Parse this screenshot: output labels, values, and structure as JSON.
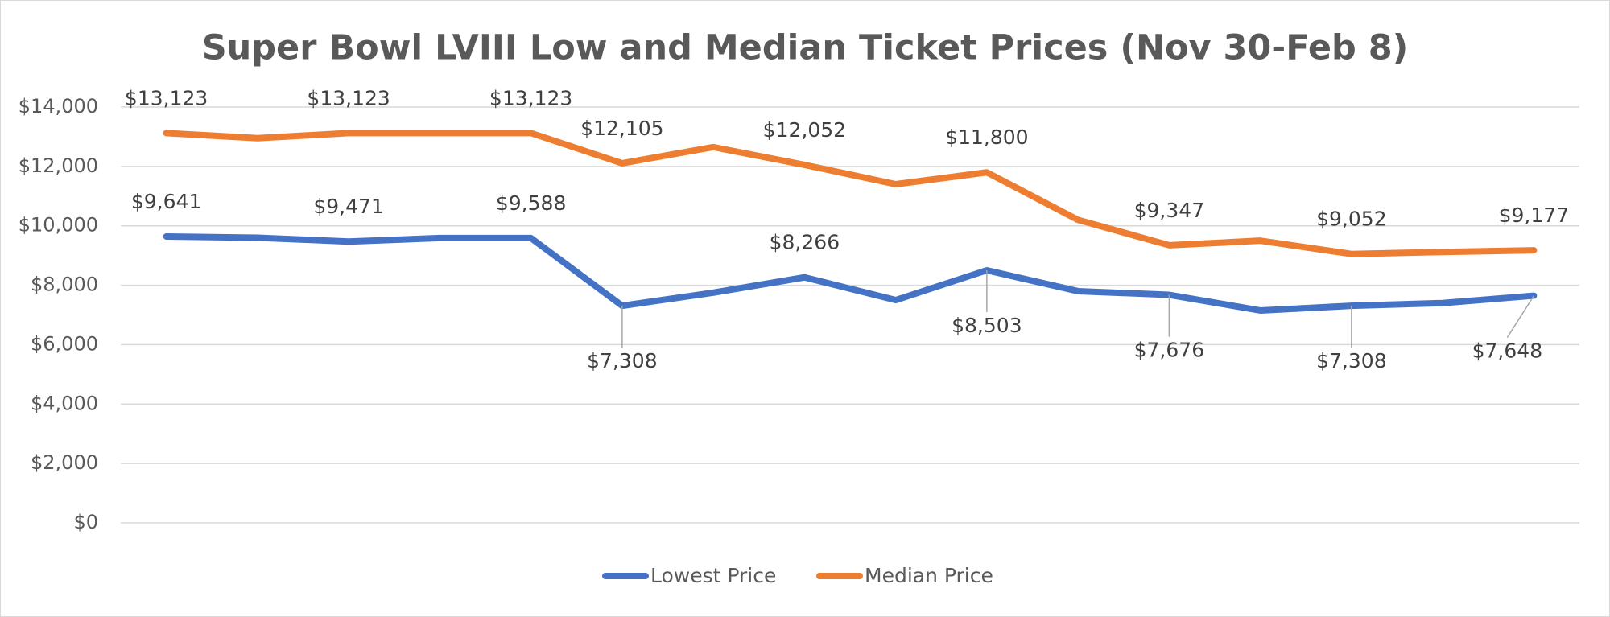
{
  "chart_data": {
    "type": "line",
    "title": "Super Bowl LVIII Low and Median Ticket Prices (Nov 30-Feb 8)",
    "categories": [
      null,
      null,
      null,
      null,
      null,
      null,
      null,
      null,
      null,
      null,
      null,
      null,
      null,
      null,
      null,
      null
    ],
    "series": [
      {
        "name": "Lowest Price",
        "color": "#4472c4",
        "values": [
          9641,
          9600,
          9471,
          9588,
          9588,
          7308,
          7750,
          8266,
          7500,
          8503,
          7800,
          7676,
          7150,
          7308,
          7400,
          7648
        ],
        "value_labels": [
          "$9,641",
          null,
          "$9,471",
          null,
          "$9,588",
          "$7,308",
          null,
          "$8,266",
          null,
          "$8,503",
          null,
          "$7,676",
          null,
          "$7,308",
          null,
          "$7,648"
        ]
      },
      {
        "name": "Median Price",
        "color": "#ed7d31",
        "values": [
          13123,
          12950,
          13123,
          13123,
          13123,
          12105,
          12650,
          12052,
          11400,
          11800,
          10200,
          9347,
          9500,
          9052,
          9120,
          9177
        ],
        "value_labels": [
          "$13,123",
          null,
          "$13,123",
          null,
          "$13,123",
          "$12,105",
          null,
          "$12,052",
          null,
          "$11,800",
          null,
          "$9,347",
          null,
          "$9,052",
          null,
          "$9,177"
        ]
      }
    ],
    "ylim": [
      0,
      14000
    ],
    "yticks": [
      {
        "value": 0,
        "label": "$0"
      },
      {
        "value": 2000,
        "label": "$2,000"
      },
      {
        "value": 4000,
        "label": "$4,000"
      },
      {
        "value": 6000,
        "label": "$6,000"
      },
      {
        "value": 8000,
        "label": "$8,000"
      },
      {
        "value": 10000,
        "label": "$10,000"
      },
      {
        "value": 12000,
        "label": "$12,000"
      },
      {
        "value": 14000,
        "label": "$14,000"
      }
    ],
    "grid": true,
    "legend": "bottom"
  }
}
